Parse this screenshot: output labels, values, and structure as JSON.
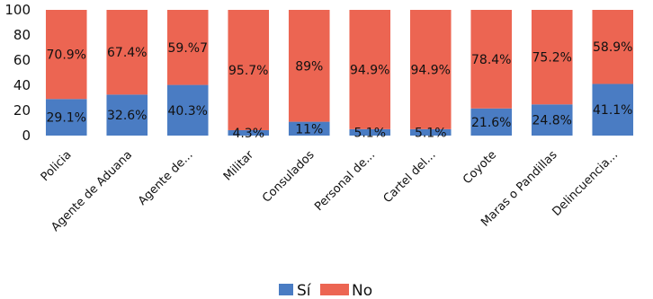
{
  "chart_data": {
    "type": "bar",
    "stacked": true,
    "categories": [
      "Policia",
      "Agente de Aduana",
      "Agente de...",
      "Militar",
      "Consulados",
      "Personal de...",
      "Cartel del...",
      "Coyote",
      "Maras o Pandillas",
      "Delincuencia..."
    ],
    "series": [
      {
        "name": "Sí",
        "color": "#4a7cc3",
        "values": [
          29.1,
          32.6,
          40.3,
          4.3,
          11,
          5.1,
          5.1,
          21.6,
          24.8,
          41.1
        ],
        "labels": [
          "29.1%",
          "32.6%",
          "40.3%",
          "4.3%",
          "11%",
          "5.1%",
          "5.1%",
          "21.6%",
          "24.8%",
          "41.1%"
        ]
      },
      {
        "name": "No",
        "color": "#ec6552",
        "values": [
          70.9,
          67.4,
          59.7,
          95.7,
          89,
          94.9,
          94.9,
          78.4,
          75.2,
          58.9
        ],
        "labels": [
          "70.9%",
          "67.4%",
          "59.%7",
          "95.7%",
          "89%",
          "94.9%",
          "94.9%",
          "78.4%",
          "75.2%",
          "58.9%"
        ]
      }
    ],
    "y_ticks": [
      "0",
      "20",
      "40",
      "60",
      "80",
      "100"
    ],
    "ylim": [
      0,
      100
    ],
    "grid": false,
    "legend": "bottom-center"
  }
}
